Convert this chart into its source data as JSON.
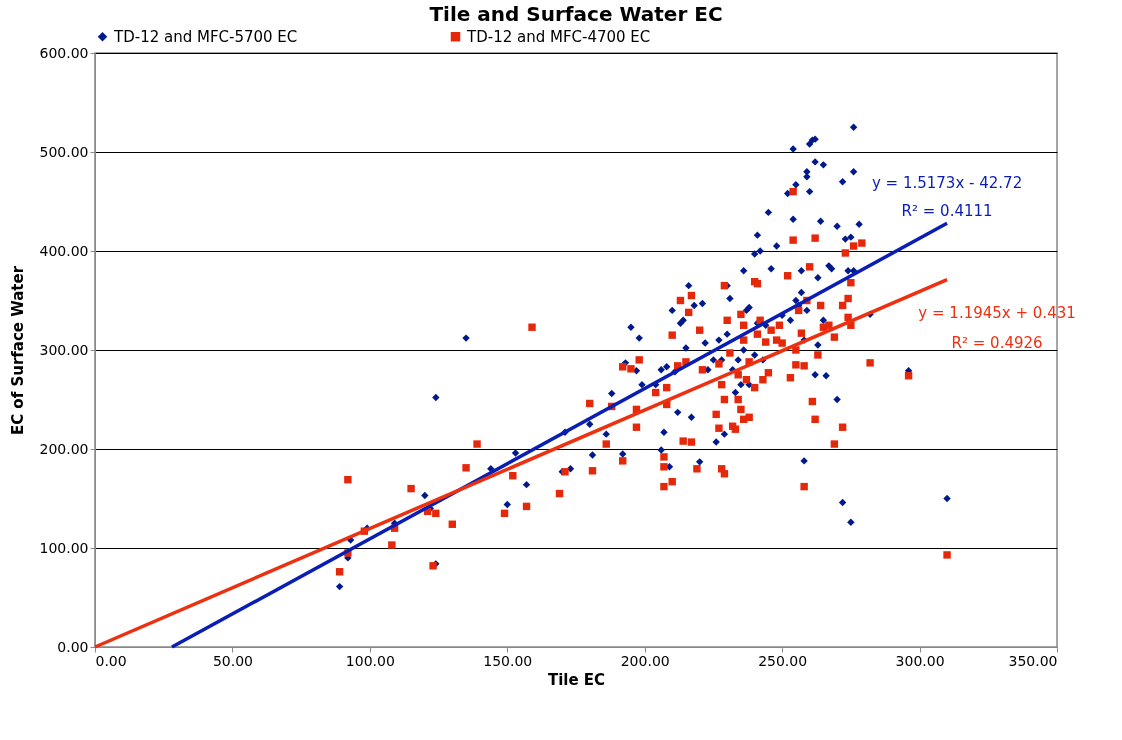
{
  "chart_data": {
    "type": "scatter",
    "title": "Tile and Surface Water EC",
    "xlabel": "Tile EC",
    "ylabel": "EC of Surface Water",
    "xlim": [
      0,
      350
    ],
    "ylim": [
      0,
      600
    ],
    "xticks": [
      {
        "value": 0,
        "label": "0.00"
      },
      {
        "value": 50,
        "label": "50.00"
      },
      {
        "value": 100,
        "label": "100.00"
      },
      {
        "value": 150,
        "label": "150.00"
      },
      {
        "value": 200,
        "label": "200.00"
      },
      {
        "value": 250,
        "label": "250.00"
      },
      {
        "value": 300,
        "label": "300.00"
      },
      {
        "value": 350,
        "label": "350.00"
      }
    ],
    "yticks": [
      {
        "value": 0,
        "label": "0.00"
      },
      {
        "value": 100,
        "label": "100.00"
      },
      {
        "value": 200,
        "label": "200.00"
      },
      {
        "value": 300,
        "label": "300.00"
      },
      {
        "value": 400,
        "label": "400.00"
      },
      {
        "value": 500,
        "label": "500.00"
      },
      {
        "value": 600,
        "label": "600.00"
      }
    ],
    "grid": "y",
    "legend": "top",
    "series": [
      {
        "name": "TD-12 and MFC-5700 EC",
        "marker": "diamond",
        "color": "#001a8c",
        "x": [
          89,
          92,
          93,
          99,
          109,
          120,
          122,
          124,
          124,
          135,
          144,
          150,
          153,
          157,
          170,
          171,
          173,
          180,
          181,
          186,
          188,
          192,
          193,
          195,
          197,
          198,
          199,
          204,
          206,
          206,
          207,
          208,
          209,
          210,
          211,
          212,
          213,
          214,
          215,
          216,
          217,
          218,
          220,
          221,
          222,
          223,
          225,
          226,
          227,
          228,
          229,
          230,
          230,
          231,
          232,
          233,
          234,
          235,
          236,
          236,
          237,
          238,
          238,
          239,
          240,
          240,
          241,
          241,
          242,
          243,
          244,
          245,
          246,
          248,
          250,
          252,
          253,
          254,
          254,
          255,
          255,
          256,
          257,
          257,
          258,
          258,
          259,
          259,
          259,
          260,
          260,
          261,
          262,
          262,
          262,
          263,
          263,
          264,
          265,
          265,
          266,
          267,
          268,
          270,
          270,
          272,
          272,
          273,
          274,
          275,
          275,
          276,
          276,
          276,
          278,
          282,
          296,
          310
        ],
        "values": [
          61,
          90,
          108,
          120,
          125,
          153,
          140,
          84,
          252,
          312,
          180,
          144,
          196,
          164,
          177,
          217,
          180,
          225,
          194,
          215,
          256,
          195,
          287,
          323,
          279,
          312,
          265,
          265,
          280,
          199,
          217,
          283,
          182,
          340,
          278,
          237,
          327,
          330,
          302,
          365,
          232,
          345,
          187,
          347,
          307,
          280,
          290,
          207,
          310,
          290,
          215,
          365,
          316,
          352,
          280,
          257,
          290,
          265,
          380,
          300,
          340,
          343,
          265,
          null,
          295,
          397,
          327,
          416,
          400,
          290,
          325,
          439,
          382,
          405,
          335,
          458,
          330,
          432,
          503,
          467,
          350,
          345,
          358,
          380,
          310,
          188,
          340,
          480,
          475,
          460,
          508,
          512,
          490,
          513,
          275,
          305,
          373,
          430,
          487,
          330,
          274,
          385,
          382,
          250,
          425,
          470,
          146,
          412,
          380,
          126,
          414,
          480,
          525,
          380,
          427,
          336,
          279,
          150
        ]
      },
      {
        "name": "TD-12 and MFC-4700 EC",
        "marker": "square",
        "color": "#e6280a",
        "x": [
          89,
          92,
          92,
          98,
          108,
          109,
          115,
          121,
          123,
          124,
          130,
          135,
          139,
          149,
          152,
          157,
          159,
          169,
          171,
          180,
          181,
          186,
          188,
          192,
          192,
          195,
          197,
          197,
          198,
          204,
          207,
          207,
          207,
          208,
          208,
          210,
          210,
          212,
          213,
          214,
          215,
          216,
          217,
          217,
          219,
          220,
          221,
          226,
          227,
          227,
          228,
          228,
          229,
          229,
          229,
          230,
          231,
          232,
          233,
          234,
          234,
          235,
          235,
          236,
          236,
          236,
          237,
          238,
          238,
          240,
          240,
          241,
          241,
          242,
          243,
          244,
          245,
          246,
          248,
          249,
          250,
          252,
          253,
          254,
          254,
          255,
          255,
          256,
          257,
          258,
          258,
          259,
          260,
          261,
          262,
          262,
          263,
          264,
          265,
          267,
          269,
          269,
          272,
          272,
          273,
          274,
          274,
          275,
          275,
          276,
          279,
          282,
          296,
          310
        ],
        "values": [
          76,
          95,
          169,
          117,
          103,
          120,
          160,
          137,
          82,
          135,
          124,
          181,
          205,
          135,
          173,
          142,
          323,
          155,
          177,
          246,
          178,
          205,
          243,
          188,
          283,
          281,
          222,
          240,
          290,
          257,
          162,
          182,
          192,
          262,
          245,
          167,
          315,
          284,
          350,
          208,
          288,
          338,
          207,
          355,
          180,
          320,
          280,
          235,
          221,
          286,
          180,
          265,
          175,
          250,
          365,
          330,
          297,
          223,
          220,
          250,
          275,
          240,
          336,
          230,
          310,
          325,
          270,
          232,
          288,
          262,
          369,
          316,
          367,
          330,
          270,
          308,
          277,
          320,
          310,
          325,
          307,
          375,
          272,
          460,
          411,
          300,
          285,
          340,
          317,
          162,
          284,
          350,
          384,
          248,
          230,
          413,
          295,
          345,
          323,
          325,
          205,
          313,
          222,
          345,
          398,
          333,
          352,
          368,
          325,
          405,
          408,
          287,
          274,
          93
        ]
      },
      {
        "type": "line",
        "color": "#0a1eb4",
        "x": [
          28,
          310
        ],
        "values": [
          0,
          428
        ]
      },
      {
        "type": "line",
        "color": "#ec3010",
        "x": [
          0,
          310
        ],
        "values": [
          0,
          371
        ]
      }
    ],
    "annotations": [
      "y = 1.5173x - 42.72",
      "R² = 0.4111",
      "y = 1.1945x + 0.431",
      "R² = 0.4926"
    ]
  }
}
